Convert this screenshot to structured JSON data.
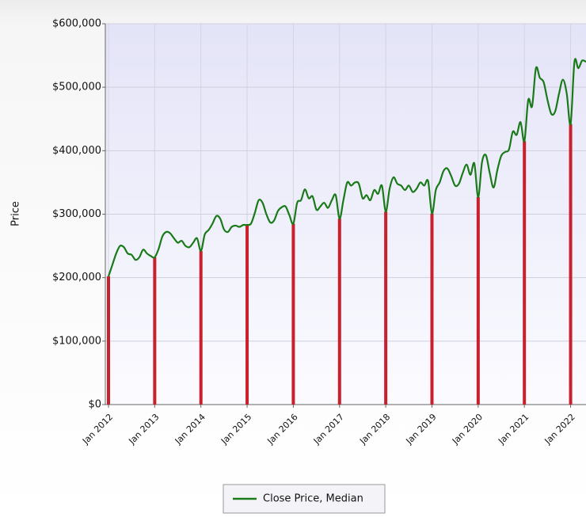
{
  "chart_data": {
    "type": "line",
    "y_label": "Price",
    "x": [
      "2012-01",
      "2012-02",
      "2012-03",
      "2012-04",
      "2012-05",
      "2012-06",
      "2012-07",
      "2012-08",
      "2012-09",
      "2012-10",
      "2012-11",
      "2012-12",
      "2013-01",
      "2013-02",
      "2013-03",
      "2013-04",
      "2013-05",
      "2013-06",
      "2013-07",
      "2013-08",
      "2013-09",
      "2013-10",
      "2013-11",
      "2013-12",
      "2014-01",
      "2014-02",
      "2014-03",
      "2014-04",
      "2014-05",
      "2014-06",
      "2014-07",
      "2014-08",
      "2014-09",
      "2014-10",
      "2014-11",
      "2014-12",
      "2015-01",
      "2015-02",
      "2015-03",
      "2015-04",
      "2015-05",
      "2015-06",
      "2015-07",
      "2015-08",
      "2015-09",
      "2015-10",
      "2015-11",
      "2015-12",
      "2016-01",
      "2016-02",
      "2016-03",
      "2016-04",
      "2016-05",
      "2016-06",
      "2016-07",
      "2016-08",
      "2016-09",
      "2016-10",
      "2016-11",
      "2016-12",
      "2017-01",
      "2017-02",
      "2017-03",
      "2017-04",
      "2017-05",
      "2017-06",
      "2017-07",
      "2017-08",
      "2017-09",
      "2017-10",
      "2017-11",
      "2017-12",
      "2018-01",
      "2018-02",
      "2018-03",
      "2018-04",
      "2018-05",
      "2018-06",
      "2018-07",
      "2018-08",
      "2018-09",
      "2018-10",
      "2018-11",
      "2018-12",
      "2019-01",
      "2019-02",
      "2019-03",
      "2019-04",
      "2019-05",
      "2019-06",
      "2019-07",
      "2019-08",
      "2019-09",
      "2019-10",
      "2019-11",
      "2019-12",
      "2020-01",
      "2020-02",
      "2020-03",
      "2020-04",
      "2020-05",
      "2020-06",
      "2020-07",
      "2020-08",
      "2020-09",
      "2020-10",
      "2020-11",
      "2020-12",
      "2021-01",
      "2021-02",
      "2021-03",
      "2021-04",
      "2021-05",
      "2021-06",
      "2021-07",
      "2021-08",
      "2021-09",
      "2021-10",
      "2021-11",
      "2021-12",
      "2022-01",
      "2022-02",
      "2022-03",
      "2022-04",
      "2022-05"
    ],
    "series": [
      {
        "name": "Close Price, Median",
        "color": "#1a7a1a",
        "values": [
          202000,
          220000,
          238000,
          250000,
          248000,
          238000,
          236000,
          228000,
          232000,
          244000,
          238000,
          234000,
          232000,
          245000,
          265000,
          272000,
          270000,
          262000,
          255000,
          258000,
          250000,
          248000,
          255000,
          262000,
          242000,
          268000,
          275000,
          285000,
          297000,
          293000,
          276000,
          272000,
          280000,
          282000,
          280000,
          283000,
          283000,
          285000,
          302000,
          322000,
          318000,
          300000,
          287000,
          290000,
          305000,
          311000,
          312000,
          298000,
          285000,
          318000,
          322000,
          339000,
          325000,
          328000,
          307000,
          312000,
          318000,
          310000,
          322000,
          330000,
          293000,
          322000,
          350000,
          345000,
          350000,
          348000,
          325000,
          330000,
          322000,
          338000,
          332000,
          345000,
          304000,
          340000,
          358000,
          348000,
          345000,
          338000,
          345000,
          335000,
          340000,
          350000,
          345000,
          352000,
          301000,
          338000,
          350000,
          368000,
          372000,
          360000,
          345000,
          348000,
          365000,
          378000,
          362000,
          380000,
          327000,
          382000,
          393000,
          365000,
          342000,
          370000,
          392000,
          398000,
          402000,
          430000,
          425000,
          445000,
          415000,
          480000,
          470000,
          530000,
          515000,
          508000,
          480000,
          458000,
          462000,
          490000,
          512000,
          490000,
          442000,
          540000,
          530000,
          542000,
          540000
        ]
      }
    ],
    "january_bars": {
      "color": "#c8202c",
      "x": [
        "2012-01",
        "2013-01",
        "2014-01",
        "2015-01",
        "2016-01",
        "2017-01",
        "2018-01",
        "2019-01",
        "2020-01",
        "2021-01",
        "2022-01"
      ],
      "values": [
        202000,
        232000,
        242000,
        283000,
        285000,
        293000,
        304000,
        301000,
        327000,
        415000,
        442000
      ]
    },
    "xlim": [
      "2012-01",
      "2022-05"
    ],
    "xticks": [
      {
        "value": "2012-01",
        "label": "Jan 2012"
      },
      {
        "value": "2013-01",
        "label": "Jan 2013"
      },
      {
        "value": "2014-01",
        "label": "Jan 2014"
      },
      {
        "value": "2015-01",
        "label": "Jan 2015"
      },
      {
        "value": "2016-01",
        "label": "Jan 2016"
      },
      {
        "value": "2017-01",
        "label": "Jan 2017"
      },
      {
        "value": "2018-01",
        "label": "Jan 2018"
      },
      {
        "value": "2019-01",
        "label": "Jan 2019"
      },
      {
        "value": "2020-01",
        "label": "Jan 2020"
      },
      {
        "value": "2021-01",
        "label": "Jan 2021"
      },
      {
        "value": "2022-01",
        "label": "Jan 2022"
      }
    ],
    "ylim": [
      0,
      600000
    ],
    "yticks": [
      {
        "value": 0,
        "label": "$0"
      },
      {
        "value": 100000,
        "label": "$100,000"
      },
      {
        "value": 200000,
        "label": "$200,000"
      },
      {
        "value": 300000,
        "label": "$300,000"
      },
      {
        "value": 400000,
        "label": "$400,000"
      },
      {
        "value": 500000,
        "label": "$500,000"
      },
      {
        "value": 600000,
        "label": "$600,000"
      }
    ],
    "grid": true,
    "legend": "bottom"
  }
}
